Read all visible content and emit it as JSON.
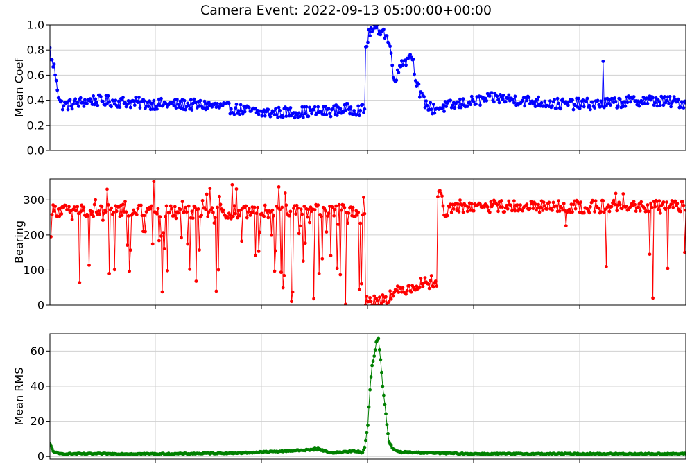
{
  "title": "Camera Event: 2022-09-13 05:00:00+00:00",
  "chart_data": [
    {
      "type": "line",
      "ylabel": "Mean Coef",
      "ylim": [
        0,
        1.0
      ],
      "yticks": [
        0.0,
        0.2,
        0.4,
        0.6,
        0.8,
        1.0
      ],
      "ytick_labels": [
        "0.0",
        "0.2",
        "0.4",
        "0.6",
        "0.8",
        "1.0"
      ],
      "xlim": [
        0,
        600
      ],
      "grid": true,
      "series": [
        {
          "color": "#0000ff",
          "profile": [
            [
              0,
              0.8
            ],
            [
              2,
              0.7
            ],
            [
              4,
              0.66
            ],
            [
              6,
              0.58
            ],
            [
              8,
              0.44
            ],
            [
              10,
              0.37
            ],
            [
              14,
              0.36
            ],
            [
              40,
              0.4
            ],
            [
              100,
              0.37
            ],
            [
              150,
              0.36
            ],
            [
              200,
              0.3
            ],
            [
              260,
              0.31
            ],
            [
              280,
              0.33
            ],
            [
              297,
              0.32
            ],
            [
              298,
              0.82
            ],
            [
              302,
              0.95
            ],
            [
              308,
              0.97
            ],
            [
              314,
              0.96
            ],
            [
              318,
              0.9
            ],
            [
              321,
              0.82
            ],
            [
              324,
              0.62
            ],
            [
              327,
              0.57
            ],
            [
              331,
              0.7
            ],
            [
              334,
              0.73
            ],
            [
              337,
              0.71
            ],
            [
              340,
              0.79
            ],
            [
              343,
              0.7
            ],
            [
              346,
              0.55
            ],
            [
              350,
              0.43
            ],
            [
              354,
              0.38
            ],
            [
              360,
              0.33
            ],
            [
              380,
              0.36
            ],
            [
              420,
              0.42
            ],
            [
              480,
              0.37
            ],
            [
              520,
              0.37
            ],
            [
              560,
              0.4
            ],
            [
              600,
              0.38
            ]
          ],
          "spikes": [
            [
              522,
              0.71
            ]
          ],
          "noise": 0.045
        }
      ]
    },
    {
      "type": "line",
      "ylabel": "Bearing",
      "ylim": [
        0,
        360
      ],
      "yticks": [
        0,
        100,
        200,
        300
      ],
      "ytick_labels": [
        "0",
        "100",
        "200",
        "300"
      ],
      "xlim": [
        0,
        600
      ],
      "grid": true,
      "series": [
        {
          "color": "#ff0000",
          "profile": [
            [
              0,
              200
            ],
            [
              2,
              270
            ],
            [
              60,
              270
            ],
            [
              120,
              265
            ],
            [
              297,
              270
            ],
            [
              298,
              12
            ],
            [
              310,
              12
            ],
            [
              316,
              20
            ],
            [
              322,
              28
            ],
            [
              330,
              40
            ],
            [
              340,
              52
            ],
            [
              352,
              62
            ],
            [
              362,
              68
            ],
            [
              365,
              68
            ],
            [
              366,
              315
            ],
            [
              369,
              318
            ],
            [
              372,
              262
            ],
            [
              380,
              282
            ],
            [
              600,
              280
            ]
          ],
          "spike_ranges": [
            [
              18,
              297,
              0.35,
              0,
              355
            ],
            [
              372,
              600,
              0.06,
              100,
              350
            ]
          ],
          "spikes": [
            [
              0,
              195
            ],
            [
              1,
              195
            ],
            [
              525,
              110
            ],
            [
              569,
              20
            ],
            [
              583,
              105
            ]
          ],
          "noise": 18
        }
      ]
    },
    {
      "type": "line",
      "ylabel": "Mean RMS",
      "ylim": [
        -1.5,
        70
      ],
      "yticks": [
        0,
        20,
        40,
        60
      ],
      "ytick_labels": [
        "0",
        "20",
        "40",
        "60"
      ],
      "xlim": [
        0,
        600
      ],
      "grid": true,
      "series": [
        {
          "color": "#008000",
          "profile": [
            [
              0,
              7
            ],
            [
              3,
              3
            ],
            [
              8,
              1.5
            ],
            [
              120,
              1.5
            ],
            [
              180,
              2
            ],
            [
              220,
              3
            ],
            [
              255,
              4
            ],
            [
              265,
              2
            ],
            [
              285,
              3
            ],
            [
              295,
              2.5
            ],
            [
              297,
              5
            ],
            [
              300,
              18
            ],
            [
              302,
              38
            ],
            [
              304,
              52
            ],
            [
              306,
              57
            ],
            [
              308,
              65
            ],
            [
              310,
              67
            ],
            [
              312,
              55
            ],
            [
              314,
              40
            ],
            [
              316,
              30
            ],
            [
              318,
              18
            ],
            [
              320,
              8
            ],
            [
              324,
              4
            ],
            [
              330,
              2.5
            ],
            [
              360,
              2
            ],
            [
              400,
              1.5
            ],
            [
              600,
              1.5
            ]
          ],
          "spikes": [
            [
              250,
              5
            ],
            [
              253,
              5
            ],
            [
              255,
              4
            ],
            [
              292,
              2.5
            ],
            [
              294,
              2
            ]
          ],
          "noise": 0.35
        }
      ]
    }
  ]
}
